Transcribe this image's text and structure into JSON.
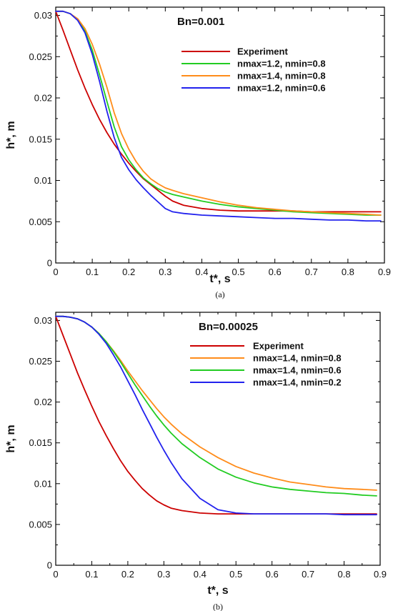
{
  "chart_data": [
    {
      "type": "line",
      "title": "Bn=0.001",
      "xlabel": "t*, s",
      "ylabel": "h*, m",
      "caption": "(a)",
      "xlim": [
        0,
        0.9
      ],
      "ylim": [
        0,
        0.031
      ],
      "xticks": [
        "0",
        "0.1",
        "0.2",
        "0.3",
        "0.4",
        "0.5",
        "0.6",
        "0.7",
        "0.8",
        "0.9"
      ],
      "yticks": [
        "0",
        "0.005",
        "0.01",
        "0.015",
        "0.02",
        "0.025",
        "0.03"
      ],
      "xtick_values": [
        0,
        0.1,
        0.2,
        0.3,
        0.4,
        0.5,
        0.6,
        0.7,
        0.8,
        0.9
      ],
      "ytick_values": [
        0,
        0.005,
        0.01,
        0.015,
        0.02,
        0.025,
        0.03
      ],
      "legend_position": "top-right",
      "grid": false,
      "x": [
        0,
        0.02,
        0.04,
        0.06,
        0.08,
        0.1,
        0.12,
        0.14,
        0.16,
        0.18,
        0.2,
        0.22,
        0.24,
        0.26,
        0.28,
        0.3,
        0.32,
        0.35,
        0.4,
        0.45,
        0.5,
        0.55,
        0.6,
        0.65,
        0.7,
        0.75,
        0.8,
        0.85,
        0.89
      ],
      "series": [
        {
          "name": "Experiment",
          "color": "#cc0000",
          "values": [
            0.0305,
            0.0282,
            0.0258,
            0.0234,
            0.0212,
            0.0192,
            0.0174,
            0.0158,
            0.0144,
            0.0132,
            0.0121,
            0.0111,
            0.0102,
            0.0095,
            0.0088,
            0.0081,
            0.0075,
            0.007,
            0.0066,
            0.0064,
            0.0063,
            0.0063,
            0.0063,
            0.0063,
            0.0062,
            0.0062,
            0.0062,
            0.0062,
            0.0062
          ]
        },
        {
          "name": "nmax=1.2, nmin=0.8",
          "color": "#22cc22",
          "values": [
            0.0305,
            0.0305,
            0.0302,
            0.0295,
            0.0281,
            0.0258,
            0.0228,
            0.0196,
            0.0165,
            0.0141,
            0.0125,
            0.0113,
            0.0103,
            0.0096,
            0.009,
            0.0086,
            0.0083,
            0.008,
            0.0075,
            0.0071,
            0.0068,
            0.0066,
            0.0064,
            0.0062,
            0.0061,
            0.006,
            0.0059,
            0.0058,
            0.0058
          ]
        },
        {
          "name": "nmax=1.4, nmin=0.8",
          "color": "#ff8c1a",
          "values": [
            0.0305,
            0.0305,
            0.0302,
            0.0296,
            0.0284,
            0.0265,
            0.0241,
            0.0213,
            0.0182,
            0.0157,
            0.0138,
            0.0123,
            0.0111,
            0.0102,
            0.0096,
            0.0091,
            0.0088,
            0.0084,
            0.0079,
            0.0074,
            0.007,
            0.0067,
            0.0065,
            0.0063,
            0.0062,
            0.0061,
            0.006,
            0.0059,
            0.0058
          ]
        },
        {
          "name": "nmax=1.2, nmin=0.6",
          "color": "#2222ee",
          "values": [
            0.0305,
            0.0305,
            0.0302,
            0.0294,
            0.0279,
            0.0253,
            0.022,
            0.0184,
            0.0152,
            0.0128,
            0.0113,
            0.0101,
            0.0091,
            0.0082,
            0.0074,
            0.0066,
            0.0062,
            0.006,
            0.0058,
            0.0057,
            0.0056,
            0.0055,
            0.0054,
            0.0054,
            0.0053,
            0.0052,
            0.0052,
            0.0051,
            0.0051
          ]
        }
      ]
    },
    {
      "type": "line",
      "title": "Bn=0.00025",
      "xlabel": "t*, s",
      "ylabel": "h*, m",
      "caption": "(b)",
      "xlim": [
        0,
        0.9
      ],
      "ylim": [
        0,
        0.031
      ],
      "xticks": [
        "0",
        "0.1",
        "0.2",
        "0.3",
        "0.4",
        "0.5",
        "0.6",
        "0.7",
        "0.8",
        "0.9"
      ],
      "yticks": [
        "0",
        "0.005",
        "0.01",
        "0.015",
        "0.02",
        "0.025",
        "0.03"
      ],
      "xtick_values": [
        0,
        0.1,
        0.2,
        0.3,
        0.4,
        0.5,
        0.6,
        0.7,
        0.8,
        0.9
      ],
      "ytick_values": [
        0,
        0.005,
        0.01,
        0.015,
        0.02,
        0.025,
        0.03
      ],
      "legend_position": "top-right",
      "grid": false,
      "x": [
        0,
        0.02,
        0.04,
        0.06,
        0.08,
        0.1,
        0.12,
        0.14,
        0.16,
        0.18,
        0.2,
        0.22,
        0.24,
        0.26,
        0.28,
        0.3,
        0.32,
        0.35,
        0.4,
        0.45,
        0.5,
        0.55,
        0.6,
        0.65,
        0.7,
        0.75,
        0.8,
        0.85,
        0.89
      ],
      "series": [
        {
          "name": "Experiment",
          "color": "#cc0000",
          "values": [
            0.0305,
            0.0282,
            0.0259,
            0.0236,
            0.0215,
            0.0195,
            0.0176,
            0.0159,
            0.0143,
            0.0128,
            0.0115,
            0.0104,
            0.0094,
            0.0086,
            0.0079,
            0.0074,
            0.007,
            0.0067,
            0.0064,
            0.0063,
            0.0063,
            0.0063,
            0.0063,
            0.0063,
            0.0063,
            0.0063,
            0.0063,
            0.0063,
            0.0063
          ]
        },
        {
          "name": "nmax=1.4, nmin=0.8",
          "color": "#ff8c1a",
          "values": [
            0.0305,
            0.0305,
            0.0304,
            0.0302,
            0.0298,
            0.0292,
            0.0284,
            0.0274,
            0.0263,
            0.0251,
            0.0238,
            0.0226,
            0.0214,
            0.0203,
            0.0192,
            0.0182,
            0.0173,
            0.0161,
            0.0145,
            0.0132,
            0.0121,
            0.0113,
            0.0107,
            0.0102,
            0.0099,
            0.0096,
            0.0094,
            0.0093,
            0.0092
          ]
        },
        {
          "name": "nmax=1.4, nmin=0.6",
          "color": "#22cc22",
          "values": [
            0.0305,
            0.0305,
            0.0304,
            0.0302,
            0.0298,
            0.0292,
            0.0284,
            0.0274,
            0.0262,
            0.0249,
            0.0235,
            0.0221,
            0.0208,
            0.0195,
            0.0183,
            0.0172,
            0.0162,
            0.0149,
            0.0132,
            0.0118,
            0.0108,
            0.0101,
            0.0096,
            0.0093,
            0.0091,
            0.0089,
            0.0088,
            0.0086,
            0.0085
          ]
        },
        {
          "name": "nmax=1.4, nmin=0.2",
          "color": "#2222ee",
          "values": [
            0.0305,
            0.0305,
            0.0304,
            0.0302,
            0.0298,
            0.0292,
            0.0283,
            0.0272,
            0.0258,
            0.0243,
            0.0226,
            0.0209,
            0.0191,
            0.0174,
            0.0157,
            0.0141,
            0.0126,
            0.0106,
            0.0082,
            0.0068,
            0.0064,
            0.0063,
            0.0063,
            0.0063,
            0.0063,
            0.0063,
            0.0062,
            0.0062,
            0.0062
          ]
        }
      ]
    }
  ]
}
